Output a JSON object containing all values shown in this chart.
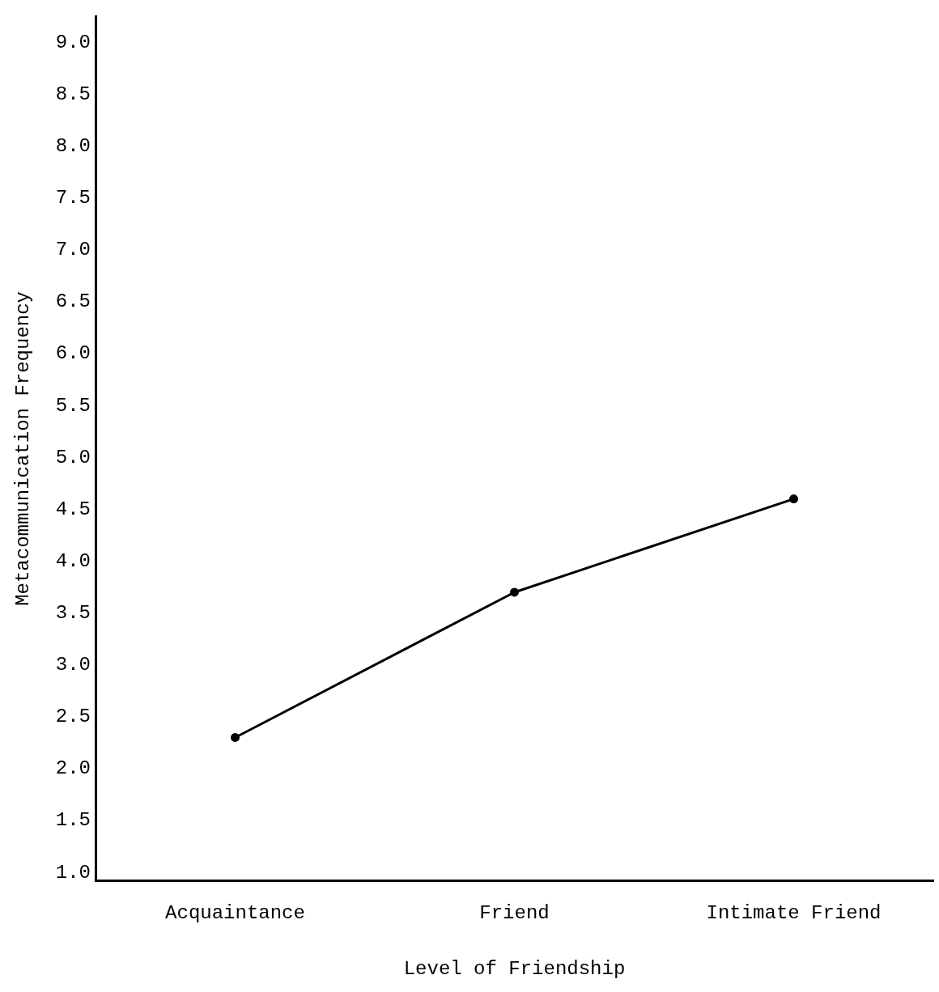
{
  "chart_data": {
    "type": "line",
    "xlabel": "Level of Friendship",
    "ylabel": "Metacommunication Frequency",
    "categories": [
      "Acquaintance",
      "Friend",
      "Intimate Friend"
    ],
    "series": [
      {
        "color": "#000000",
        "values": [
          2.3,
          3.7,
          4.6
        ]
      }
    ],
    "ylim": [
      0.92,
      9.25
    ],
    "yticks": [
      {
        "value": 1,
        "label": "1.0"
      },
      1.5,
      {
        "value": 2,
        "label": "2.0"
      },
      2.5,
      {
        "value": 3,
        "label": "3.0"
      },
      3.5,
      {
        "value": 4,
        "label": "4.0"
      },
      4.5,
      {
        "value": 5,
        "label": "5.0"
      },
      5.5,
      {
        "value": 6,
        "label": "6.0"
      },
      6.5,
      {
        "value": 7,
        "label": "7.0"
      },
      7.5,
      {
        "value": 8,
        "label": "8.0"
      },
      8.5,
      {
        "value": 9,
        "label": "9.0"
      }
    ],
    "grid": false,
    "legend": false,
    "marker": "circle",
    "line_style": "solid"
  }
}
